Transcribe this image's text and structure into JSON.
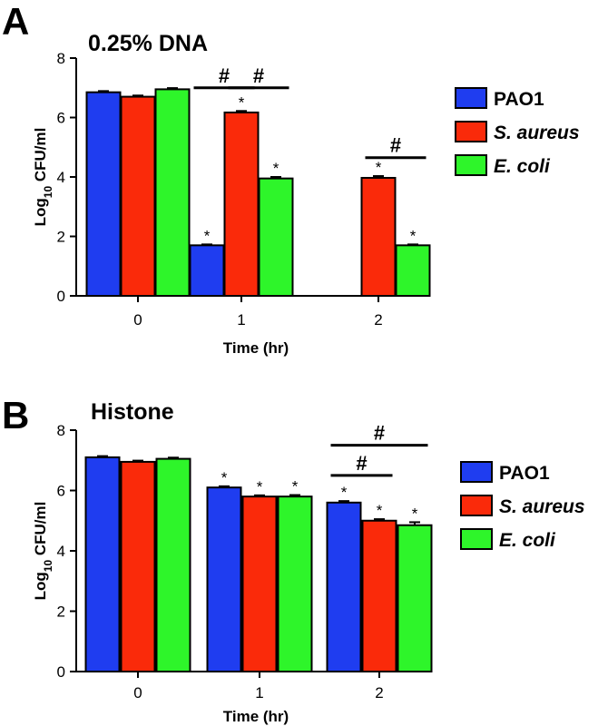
{
  "colors": {
    "PAO1": "#1f3df0",
    "S. aureus": "#fa2a0a",
    "E. coli": "#2ef52a"
  },
  "chart_data": [
    {
      "type": "bar",
      "panel": "A",
      "title": "0.25% DNA",
      "xlabel": "Time (hr)",
      "ylabel_base": "Log",
      "ylabel_sub": "10",
      "ylabel_rest": " CFU/ml",
      "categories": [
        "0",
        "1",
        "2"
      ],
      "ylim": [
        0,
        8
      ],
      "yticks": [
        "0",
        "2",
        "4",
        "6",
        "8"
      ],
      "series": [
        {
          "name": "PAO1",
          "italic": false,
          "values": [
            6.85,
            1.7,
            null
          ],
          "errors": [
            0.04,
            0.03,
            null
          ],
          "stars": [
            false,
            true,
            false
          ]
        },
        {
          "name": "S. aureus",
          "italic": true,
          "values": [
            6.7,
            6.17,
            3.97
          ],
          "errors": [
            0.04,
            0.05,
            0.06
          ],
          "stars": [
            false,
            true,
            true
          ]
        },
        {
          "name": "E. coli",
          "italic": true,
          "values": [
            6.95,
            3.95,
            1.7
          ],
          "errors": [
            0.04,
            0.05,
            0.03
          ],
          "stars": [
            false,
            true,
            true
          ]
        }
      ],
      "significance": [
        {
          "label": "#",
          "category": "1",
          "from_series": 0,
          "to_series": 1,
          "level": 7.0
        },
        {
          "label": "#",
          "category": "1",
          "from_series": 1,
          "to_series": 2,
          "level": 7.0
        },
        {
          "label": "#",
          "category": "2",
          "from_series": 1,
          "to_series": 2,
          "level": 4.65
        }
      ],
      "star_label": "*",
      "legend_position": "right"
    },
    {
      "type": "bar",
      "panel": "B",
      "title": "Histone",
      "xlabel": "Time (hr)",
      "ylabel_base": "Log",
      "ylabel_sub": "10",
      "ylabel_rest": " CFU/ml",
      "categories": [
        "0",
        "1",
        "2"
      ],
      "ylim": [
        0,
        8
      ],
      "yticks": [
        "0",
        "2",
        "4",
        "6",
        "8"
      ],
      "series": [
        {
          "name": "PAO1",
          "italic": false,
          "values": [
            7.1,
            6.1,
            5.6
          ],
          "errors": [
            0.04,
            0.04,
            0.05
          ],
          "stars": [
            false,
            true,
            true
          ]
        },
        {
          "name": "S. aureus",
          "italic": true,
          "values": [
            6.95,
            5.8,
            5.0
          ],
          "errors": [
            0.04,
            0.04,
            0.05
          ],
          "stars": [
            false,
            true,
            true
          ]
        },
        {
          "name": "E. coli",
          "italic": true,
          "values": [
            7.05,
            5.8,
            4.85
          ],
          "errors": [
            0.04,
            0.05,
            0.1
          ],
          "stars": [
            false,
            true,
            true
          ]
        }
      ],
      "significance": [
        {
          "label": "#",
          "category": "2",
          "from_series": 0,
          "to_series": 2,
          "level": 7.5
        },
        {
          "label": "#",
          "category": "2",
          "from_series": 0,
          "to_series": 1,
          "level": 6.5
        }
      ],
      "star_label": "*",
      "legend_position": "right"
    }
  ]
}
